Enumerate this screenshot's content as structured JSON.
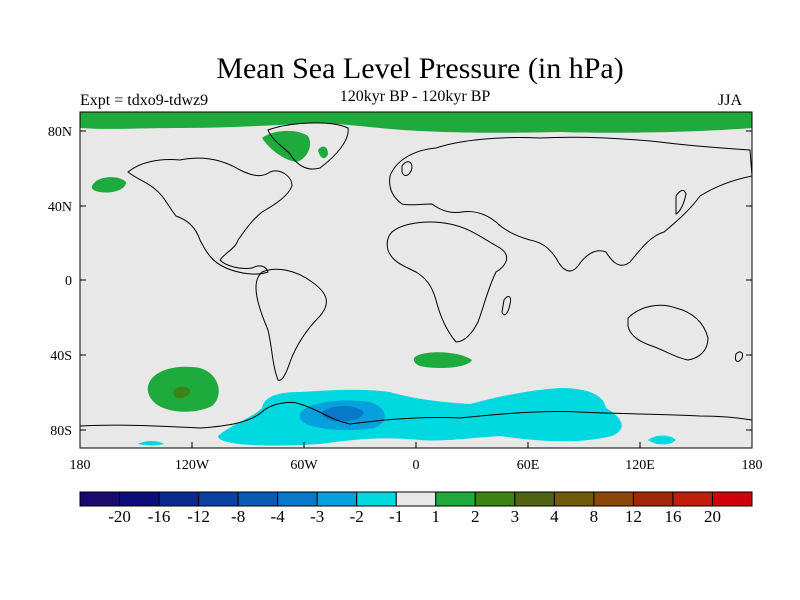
{
  "title": "Mean Sea Level Pressure (in hPa)",
  "subtitle": "120kyr BP - 120kyr BP",
  "experiment_label": "Expt = tdxo9-tdwz9",
  "season_label": "JJA",
  "lat_labels": [
    "80N",
    "40N",
    "0",
    "40S",
    "80S"
  ],
  "lon_labels": [
    "180",
    "120W",
    "60W",
    "0",
    "60E",
    "120E",
    "180"
  ],
  "colorbar": {
    "colors": [
      "#1a0a6e",
      "#0c0c7a",
      "#0a2a8e",
      "#0a40a0",
      "#0a5ab4",
      "#0a78c8",
      "#06a0dc",
      "#00d8e0",
      "#e8e8e8",
      "#1eaa3c",
      "#3c8214",
      "#506414",
      "#6e5a0a",
      "#8c460a",
      "#a0280a",
      "#be1e0a",
      "#d2000a"
    ],
    "labels": [
      "-20",
      "-16",
      "-12",
      "-8",
      "-4",
      "-3",
      "-2",
      "-1",
      "1",
      "2",
      "3",
      "4",
      "8",
      "12",
      "16",
      "20"
    ]
  },
  "colors": {
    "background_field": "#e8e8e8",
    "positive_1": "#1eaa3c",
    "positive_2": "#3c8214",
    "negative_1": "#00d8e0",
    "negative_2": "#06a0dc",
    "negative_3": "#0a78c8"
  }
}
